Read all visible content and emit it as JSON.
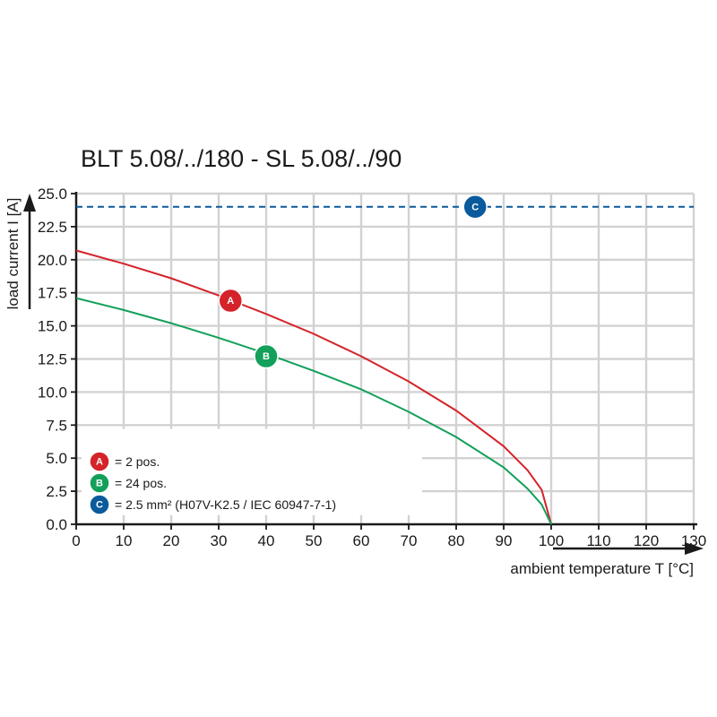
{
  "chart_data": {
    "type": "line",
    "title": "BLT 5.08/../180 - SL 5.08/../90",
    "xlabel": "ambient temperature T [°C]",
    "ylabel": "load current I [A]",
    "xlim": [
      0,
      130
    ],
    "ylim": [
      0,
      25
    ],
    "x_ticks": [
      "0",
      "10",
      "20",
      "30",
      "40",
      "50",
      "60",
      "70",
      "80",
      "90",
      "100",
      "110",
      "120",
      "130"
    ],
    "y_ticks": [
      "0.0",
      "2.5",
      "5.0",
      "7.5",
      "10.0",
      "12.5",
      "15.0",
      "17.5",
      "20.0",
      "22.5",
      "25.0"
    ],
    "grid": true,
    "legend_position": "bottom-left",
    "series": [
      {
        "name": "= 2 pos.",
        "marker": "A",
        "color": "#d5232a",
        "style": "solid",
        "x": [
          0,
          10,
          20,
          30,
          40,
          50,
          60,
          70,
          80,
          90,
          95,
          98,
          100
        ],
        "y": [
          20.7,
          19.7,
          18.6,
          17.3,
          15.9,
          14.4,
          12.7,
          10.8,
          8.6,
          5.9,
          4.1,
          2.6,
          0
        ]
      },
      {
        "name": "= 24 pos.",
        "marker": "B",
        "color": "#12a05a",
        "style": "solid",
        "x": [
          0,
          10,
          20,
          30,
          40,
          50,
          60,
          70,
          80,
          90,
          95,
          98,
          100
        ],
        "y": [
          17.1,
          16.2,
          15.2,
          14.1,
          12.9,
          11.6,
          10.2,
          8.5,
          6.6,
          4.3,
          2.7,
          1.5,
          0
        ]
      },
      {
        "name": "= 2.5 mm² (H07V-K2.5 / IEC 60947-7-1)",
        "marker": "C",
        "color": "#0a5a9c",
        "style": "dashed",
        "x": [
          0,
          130
        ],
        "y": [
          24,
          24
        ]
      }
    ],
    "marker_positions": [
      {
        "marker": "A",
        "x": 32.5,
        "y": 16.9
      },
      {
        "marker": "B",
        "x": 40,
        "y": 12.7
      },
      {
        "marker": "C",
        "x": 84,
        "y": 24
      }
    ]
  }
}
